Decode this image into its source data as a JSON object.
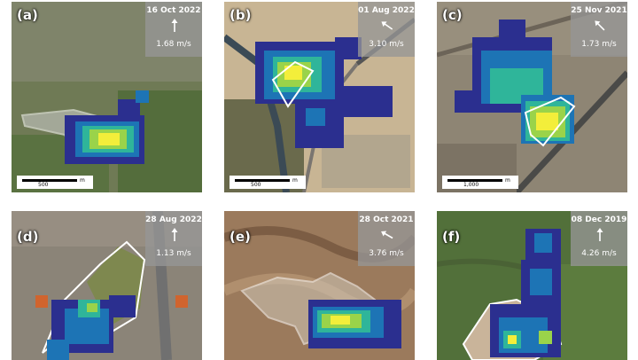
{
  "panels": [
    {
      "label": "(a)",
      "date": "16 Oct 2022",
      "speed": "1.68 m/s",
      "arrow_angle_deg": 0,
      "scale_label": "500",
      "scale_unit": "m"
    },
    {
      "label": "(b)",
      "date": "01 Aug 2022",
      "speed": "3.10 m/s",
      "arrow_angle_deg": -55,
      "scale_label": "500",
      "scale_unit": "m"
    },
    {
      "label": "(c)",
      "date": "25 Nov 2021",
      "speed": "1.73 m/s",
      "arrow_angle_deg": -45,
      "scale_label": "1,000",
      "scale_unit": "m"
    },
    {
      "label": "(d)",
      "date": "28 Aug 2022",
      "speed": "1.13 m/s",
      "arrow_angle_deg": 0
    },
    {
      "label": "(e)",
      "date": "28 Oct 2021",
      "speed": "3.76 m/s",
      "arrow_angle_deg": -60
    },
    {
      "label": "(f)",
      "date": "08 Dec 2019",
      "speed": "4.26 m/s",
      "arrow_angle_deg": 0
    }
  ],
  "colors": {
    "plume_dark": "#2b2f8f",
    "plume_mid": "#1d74b5",
    "plume_teal": "#2fb59a",
    "plume_green": "#9ad34a",
    "plume_yellow": "#f3ee3a",
    "outline": "#ffffff"
  }
}
